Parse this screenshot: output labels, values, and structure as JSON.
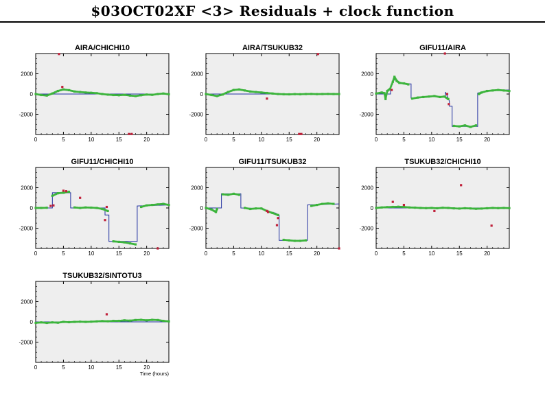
{
  "page": {
    "title": "$03OCT02XF <3> Residuals + clock function",
    "x_axis_label": "Time (hours)"
  },
  "colors": {
    "panel_bg": "#eeeeee",
    "residual_good": "#3cb43c",
    "residual_bad": "#c0203a",
    "clock_function": "#2030a0"
  },
  "chart_data": [
    {
      "type": "scatter",
      "title": "AIRA/CHICHI10",
      "xlim": [
        0,
        24
      ],
      "ylim": [
        -4000,
        4000
      ],
      "xticks": [
        0,
        5,
        10,
        15,
        20
      ],
      "yticks": [
        2000,
        0,
        -2000
      ],
      "clock": [
        [
          0,
          0
        ],
        [
          24,
          0
        ]
      ],
      "good": [
        [
          0,
          0
        ],
        [
          1,
          -100
        ],
        [
          2,
          -150
        ],
        [
          3,
          50
        ],
        [
          4,
          300
        ],
        [
          5,
          450
        ],
        [
          6,
          380
        ],
        [
          7,
          250
        ],
        [
          8,
          200
        ],
        [
          9,
          150
        ],
        [
          10,
          120
        ],
        [
          11,
          80
        ],
        [
          12,
          0
        ],
        [
          13,
          -60
        ],
        [
          14,
          -100
        ],
        [
          15,
          -120
        ],
        [
          16,
          -80
        ],
        [
          17,
          -150
        ],
        [
          18,
          -200
        ],
        [
          19,
          -120
        ],
        [
          20,
          -50
        ],
        [
          21,
          -80
        ],
        [
          22,
          0
        ],
        [
          23,
          50
        ],
        [
          24,
          -20
        ]
      ],
      "bad": [
        [
          4.2,
          3950
        ],
        [
          4.8,
          700
        ],
        [
          16.8,
          -3950
        ],
        [
          17.3,
          -3950
        ]
      ]
    },
    {
      "type": "scatter",
      "title": "AIRA/TSUKUB32",
      "xlim": [
        0,
        24
      ],
      "ylim": [
        -4000,
        4000
      ],
      "xticks": [
        0,
        5,
        10,
        15,
        20
      ],
      "yticks": [
        2000,
        0,
        -2000
      ],
      "clock": [
        [
          0,
          0
        ],
        [
          24,
          0
        ]
      ],
      "good": [
        [
          0,
          0
        ],
        [
          1,
          -100
        ],
        [
          2,
          -200
        ],
        [
          3,
          -50
        ],
        [
          4,
          200
        ],
        [
          5,
          400
        ],
        [
          6,
          450
        ],
        [
          7,
          350
        ],
        [
          8,
          250
        ],
        [
          9,
          200
        ],
        [
          10,
          150
        ],
        [
          11,
          100
        ],
        [
          12,
          50
        ],
        [
          13,
          0
        ],
        [
          14,
          -20
        ],
        [
          15,
          -30
        ],
        [
          16,
          -10
        ],
        [
          17,
          -20
        ],
        [
          18,
          0
        ],
        [
          19,
          10
        ],
        [
          20,
          -10
        ],
        [
          21,
          0
        ],
        [
          22,
          10
        ],
        [
          23,
          0
        ],
        [
          24,
          0
        ]
      ],
      "bad": [
        [
          11,
          -450
        ],
        [
          20.2,
          3950
        ],
        [
          16.8,
          -3950
        ],
        [
          17.2,
          -3950
        ]
      ]
    },
    {
      "type": "scatter",
      "title": "GIFU11/AIRA",
      "xlim": [
        0,
        24
      ],
      "ylim": [
        -4000,
        4000
      ],
      "xticks": [
        0,
        5,
        10,
        15,
        20
      ],
      "yticks": [
        2000,
        0,
        -2000
      ],
      "clock": [
        [
          0,
          0
        ],
        [
          2.6,
          0
        ],
        [
          2.6,
          800
        ],
        [
          3.5,
          1600
        ],
        [
          4,
          1100
        ],
        [
          5,
          1000
        ],
        [
          6.3,
          1000
        ],
        [
          6.3,
          -400
        ],
        [
          10,
          -200
        ],
        [
          12.5,
          -300
        ],
        [
          12.5,
          200
        ],
        [
          13.2,
          -700
        ],
        [
          13.2,
          -1200
        ],
        [
          13.7,
          -1200
        ],
        [
          13.7,
          -3200
        ],
        [
          18.3,
          -3200
        ],
        [
          18.3,
          100
        ],
        [
          21,
          400
        ],
        [
          24,
          400
        ]
      ],
      "good": [
        [
          0,
          50
        ],
        [
          1,
          150
        ],
        [
          1.5,
          80
        ],
        [
          2,
          300
        ],
        [
          2.5,
          500
        ],
        [
          3,
          1200
        ],
        [
          3.3,
          1700
        ],
        [
          3.7,
          1300
        ],
        [
          4.2,
          1100
        ],
        [
          5,
          1050
        ],
        [
          5.8,
          950
        ],
        [
          6.5,
          -450
        ],
        [
          7.5,
          -350
        ],
        [
          8.5,
          -300
        ],
        [
          9.5,
          -250
        ],
        [
          10.5,
          -200
        ],
        [
          11.5,
          -300
        ],
        [
          12.3,
          -250
        ],
        [
          13,
          -500
        ],
        [
          14,
          -3150
        ],
        [
          15,
          -3200
        ],
        [
          16,
          -3100
        ],
        [
          17,
          -3250
        ],
        [
          18,
          -3100
        ],
        [
          18.5,
          0
        ],
        [
          19,
          150
        ],
        [
          20,
          300
        ],
        [
          21,
          350
        ],
        [
          22,
          400
        ],
        [
          23,
          350
        ],
        [
          24,
          300
        ],
        [
          1.7,
          -500
        ]
      ],
      "bad": [
        [
          2.8,
          400
        ],
        [
          12.8,
          0
        ],
        [
          13.1,
          -1000
        ],
        [
          12.4,
          4000
        ]
      ]
    },
    {
      "type": "scatter",
      "title": "GIFU11/CHICHI10",
      "xlim": [
        0,
        24
      ],
      "ylim": [
        -4000,
        4000
      ],
      "xticks": [
        0,
        5,
        10,
        15,
        20
      ],
      "yticks": [
        2000,
        0,
        -2000
      ],
      "clock": [
        [
          0,
          0
        ],
        [
          3,
          0
        ],
        [
          3,
          1500
        ],
        [
          6.3,
          1500
        ],
        [
          6.3,
          0
        ],
        [
          12.5,
          0
        ],
        [
          12.5,
          -700
        ],
        [
          13.2,
          -700
        ],
        [
          13.2,
          -3300
        ],
        [
          18.3,
          -3300
        ],
        [
          18.3,
          200
        ],
        [
          24,
          300
        ]
      ],
      "good": [
        [
          0,
          0
        ],
        [
          1,
          0
        ],
        [
          2,
          20
        ],
        [
          3,
          1200
        ],
        [
          4,
          1450
        ],
        [
          5,
          1500
        ],
        [
          6,
          1600
        ],
        [
          7,
          50
        ],
        [
          8,
          0
        ],
        [
          9,
          50
        ],
        [
          10,
          30
        ],
        [
          11,
          0
        ],
        [
          12,
          -100
        ],
        [
          13,
          -300
        ],
        [
          14,
          -3300
        ],
        [
          15,
          -3350
        ],
        [
          16,
          -3400
        ],
        [
          17,
          -3500
        ],
        [
          18,
          -3600
        ],
        [
          19,
          100
        ],
        [
          20,
          250
        ],
        [
          21,
          300
        ],
        [
          22,
          350
        ],
        [
          23,
          400
        ],
        [
          24,
          300
        ]
      ],
      "bad": [
        [
          2.7,
          200
        ],
        [
          3.2,
          250
        ],
        [
          5,
          1700
        ],
        [
          5.5,
          1650
        ],
        [
          8,
          1000
        ],
        [
          12.8,
          100
        ],
        [
          12.5,
          -1200
        ],
        [
          22,
          -4000
        ]
      ]
    },
    {
      "type": "scatter",
      "title": "GIFU11/TSUKUB32",
      "xlim": [
        0,
        24
      ],
      "ylim": [
        -4000,
        4000
      ],
      "xticks": [
        0,
        5,
        10,
        15,
        20
      ],
      "yticks": [
        2000,
        0,
        -2000
      ],
      "clock": [
        [
          0,
          0
        ],
        [
          2.8,
          0
        ],
        [
          2.8,
          1400
        ],
        [
          6.3,
          1400
        ],
        [
          6.3,
          0
        ],
        [
          10,
          -50
        ],
        [
          11,
          -300
        ],
        [
          12.5,
          -500
        ],
        [
          13.2,
          -700
        ],
        [
          13.2,
          -3200
        ],
        [
          18.3,
          -3200
        ],
        [
          18.3,
          300
        ],
        [
          24,
          400
        ]
      ],
      "good": [
        [
          0,
          0
        ],
        [
          1,
          -150
        ],
        [
          2,
          -100
        ],
        [
          3,
          1350
        ],
        [
          4,
          1300
        ],
        [
          5,
          1400
        ],
        [
          6,
          1300
        ],
        [
          7,
          0
        ],
        [
          8,
          -100
        ],
        [
          9,
          -50
        ],
        [
          10,
          -50
        ],
        [
          11,
          -300
        ],
        [
          12,
          -500
        ],
        [
          13,
          -700
        ],
        [
          14,
          -3150
        ],
        [
          15,
          -3200
        ],
        [
          16,
          -3250
        ],
        [
          17,
          -3250
        ],
        [
          18,
          -3200
        ],
        [
          19,
          200
        ],
        [
          20,
          300
        ],
        [
          21,
          400
        ],
        [
          22,
          450
        ],
        [
          23,
          400
        ],
        [
          1.8,
          -400
        ]
      ],
      "bad": [
        [
          11,
          -300
        ],
        [
          11.2,
          -400
        ],
        [
          12.8,
          -1700
        ],
        [
          13,
          -1000
        ],
        [
          24,
          -4000
        ]
      ]
    },
    {
      "type": "scatter",
      "title": "TSUKUB32/CHICHI10",
      "xlim": [
        0,
        24
      ],
      "ylim": [
        -4000,
        4000
      ],
      "xticks": [
        0,
        5,
        10,
        15,
        20
      ],
      "yticks": [
        2000,
        0,
        -2000
      ],
      "clock": [
        [
          0,
          0
        ],
        [
          24,
          0
        ]
      ],
      "good": [
        [
          0,
          0
        ],
        [
          1,
          50
        ],
        [
          2,
          80
        ],
        [
          3,
          100
        ],
        [
          4,
          120
        ],
        [
          5,
          100
        ],
        [
          6,
          50
        ],
        [
          7,
          30
        ],
        [
          8,
          0
        ],
        [
          9,
          -20
        ],
        [
          10,
          0
        ],
        [
          11,
          -30
        ],
        [
          12,
          20
        ],
        [
          13,
          0
        ],
        [
          14,
          -40
        ],
        [
          15,
          -60
        ],
        [
          16,
          -30
        ],
        [
          17,
          -50
        ],
        [
          18,
          -80
        ],
        [
          19,
          -60
        ],
        [
          20,
          -30
        ],
        [
          21,
          0
        ],
        [
          22,
          -20
        ],
        [
          23,
          0
        ],
        [
          24,
          -20
        ]
      ],
      "bad": [
        [
          3,
          600
        ],
        [
          5,
          300
        ],
        [
          10.5,
          -300
        ],
        [
          15.3,
          2250
        ],
        [
          20.8,
          -1750
        ]
      ]
    },
    {
      "type": "scatter",
      "title": "TSUKUB32/SINTOTU3",
      "xlim": [
        0,
        24
      ],
      "ylim": [
        -4000,
        4000
      ],
      "xticks": [
        0,
        5,
        10,
        15,
        20
      ],
      "yticks": [
        2000,
        0,
        -2000
      ],
      "xlabel": "Time (hours)",
      "clock": [
        [
          0,
          0
        ],
        [
          24,
          0
        ]
      ],
      "good": [
        [
          0,
          -100
        ],
        [
          1,
          -50
        ],
        [
          2,
          -100
        ],
        [
          3,
          -50
        ],
        [
          4,
          -80
        ],
        [
          5,
          0
        ],
        [
          6,
          -30
        ],
        [
          7,
          0
        ],
        [
          8,
          20
        ],
        [
          9,
          0
        ],
        [
          10,
          20
        ],
        [
          11,
          50
        ],
        [
          12,
          80
        ],
        [
          13,
          60
        ],
        [
          14,
          100
        ],
        [
          15,
          100
        ],
        [
          16,
          150
        ],
        [
          17,
          120
        ],
        [
          18,
          180
        ],
        [
          19,
          200
        ],
        [
          20,
          150
        ],
        [
          21,
          200
        ],
        [
          22,
          180
        ],
        [
          23,
          100
        ],
        [
          24,
          50
        ]
      ],
      "bad": [
        [
          12.8,
          750
        ]
      ]
    }
  ]
}
